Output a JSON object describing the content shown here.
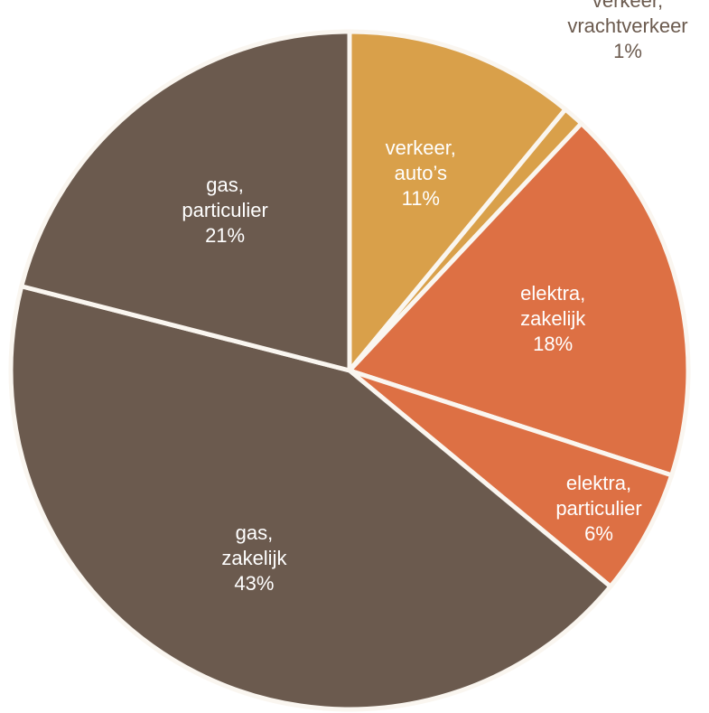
{
  "chart_data": {
    "type": "pie",
    "start": "top",
    "direction": "clockwise",
    "slices": [
      {
        "name": "verkeer, auto's",
        "lines": [
          "verkeer,",
          "auto’s"
        ],
        "percent_label": "11%",
        "value": 11,
        "color": "#d9a04a",
        "label_color": "#ffffff"
      },
      {
        "name": "verkeer, vrachtverkeer",
        "lines": [
          "verkeer,",
          "vrachtverkeer"
        ],
        "percent_label": "1%",
        "value": 1,
        "color": "#d9a04a",
        "label_color": "#6b5a4e"
      },
      {
        "name": "elektra, zakelijk",
        "lines": [
          "elektra,",
          "zakelijk"
        ],
        "percent_label": "18%",
        "value": 18,
        "color": "#dd7044",
        "label_color": "#ffffff"
      },
      {
        "name": "elektra, particulier",
        "lines": [
          "elektra,",
          "particulier"
        ],
        "percent_label": "6%",
        "value": 6,
        "color": "#dd7044",
        "label_color": "#ffffff"
      },
      {
        "name": "gas, zakelijk",
        "lines": [
          "gas,",
          "zakelijk"
        ],
        "percent_label": "43%",
        "value": 43,
        "color": "#6b5a4e",
        "label_color": "#ffffff"
      },
      {
        "name": "gas, particulier",
        "lines": [
          "gas,",
          "particulier"
        ],
        "percent_label": "21%",
        "value": 21,
        "color": "#6b5a4e",
        "label_color": "#ffffff"
      }
    ],
    "title": "",
    "legend": "none"
  }
}
